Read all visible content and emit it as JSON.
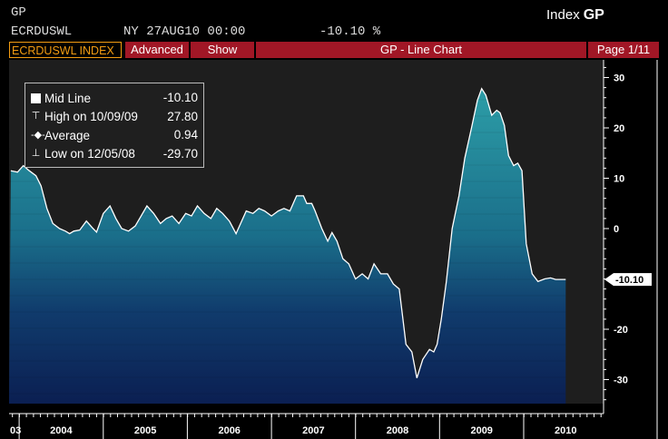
{
  "header": {
    "command": "GP",
    "ticker": "ECRDUSWL",
    "date_line": "NY 27AUG10 00:00",
    "value": "-10.10 %",
    "index_label": "Index",
    "index_func": "GP"
  },
  "toolbar": {
    "ticker_tab": "ECRDUSWL INDEX",
    "advanced": "Advanced",
    "show": "Show",
    "title": "GP - Line Chart",
    "page": "Page 1/11"
  },
  "legend": {
    "mid": {
      "label": "Mid Line",
      "value": "-10.10"
    },
    "high": {
      "label": "High on 10/09/09",
      "value": "27.80"
    },
    "average": {
      "label": "Average",
      "value": "0.94"
    },
    "low": {
      "label": "Low on 12/05/08",
      "value": "-29.70"
    }
  },
  "colors": {
    "panel": "#1e1e1e",
    "fill_top": "#2b9aa5",
    "fill_bottom": "#0b1f52",
    "accent": "#a11726",
    "ticker_tab": "#f39c12"
  },
  "chart_data": {
    "type": "area",
    "ylim": [
      -35,
      32
    ],
    "yticks": [
      30,
      20,
      10,
      0,
      -10,
      -20,
      -30
    ],
    "current_value": "-10.10",
    "x_labels": [
      "03",
      "2004",
      "2005",
      "2006",
      "2007",
      "2008",
      "2009",
      "2010"
    ],
    "x_label_dates": [
      2003.9,
      2004.0,
      2005.0,
      2006.0,
      2007.0,
      2008.0,
      2009.0,
      2010.0
    ],
    "xlim": [
      2003.88,
      2010.95
    ],
    "x": [
      2003.9,
      2003.98,
      2004.05,
      2004.12,
      2004.2,
      2004.26,
      2004.33,
      2004.4,
      2004.48,
      2004.55,
      2004.6,
      2004.65,
      2004.72,
      2004.8,
      2004.88,
      2004.92,
      2005.0,
      2005.08,
      2005.15,
      2005.22,
      2005.3,
      2005.38,
      2005.45,
      2005.52,
      2005.6,
      2005.68,
      2005.75,
      2005.82,
      2005.9,
      2005.98,
      2006.05,
      2006.12,
      2006.2,
      2006.28,
      2006.35,
      2006.42,
      2006.5,
      2006.58,
      2006.62,
      2006.7,
      2006.78,
      2006.85,
      2006.92,
      2007.0,
      2007.08,
      2007.15,
      2007.22,
      2007.3,
      2007.38,
      2007.42,
      2007.48,
      2007.52,
      2007.6,
      2007.67,
      2007.72,
      2007.78,
      2007.85,
      2007.92,
      2008.0,
      2008.08,
      2008.15,
      2008.22,
      2008.3,
      2008.38,
      2008.45,
      2008.52,
      2008.6,
      2008.67,
      2008.73,
      2008.8,
      2008.88,
      2008.93,
      2008.97,
      2009.02,
      2009.08,
      2009.15,
      2009.23,
      2009.3,
      2009.38,
      2009.45,
      2009.5,
      2009.55,
      2009.62,
      2009.68,
      2009.72,
      2009.77,
      2009.82,
      2009.88,
      2009.93,
      2009.98,
      2010.03,
      2010.1,
      2010.17,
      2010.25,
      2010.32,
      2010.38,
      2010.45,
      2010.5
    ],
    "y": [
      11.5,
      11.2,
      12.5,
      11.5,
      10.5,
      8.5,
      4,
      1,
      0,
      -0.5,
      -1,
      -0.5,
      -0.3,
      1.5,
      0,
      -0.7,
      3,
      4.5,
      2,
      0,
      -0.5,
      0.5,
      2.5,
      4.5,
      3,
      1,
      2,
      2.5,
      1,
      3,
      2.5,
      4.5,
      3,
      2,
      4,
      3,
      1.5,
      -1,
      0.5,
      3.5,
      3,
      4,
      3.5,
      2.5,
      3.5,
      4,
      3.5,
      6.5,
      6.5,
      5,
      5,
      3.5,
      0,
      -2.5,
      -0.8,
      -2.5,
      -6,
      -7,
      -10,
      -9,
      -10,
      -7,
      -9,
      -9,
      -11,
      -12,
      -23,
      -24.5,
      -29.7,
      -26,
      -24,
      -24.5,
      -23,
      -18,
      -10.5,
      0,
      6.5,
      14,
      20,
      25.5,
      27.8,
      26.5,
      22.5,
      23.5,
      23,
      20.5,
      14.5,
      12.5,
      13,
      11.5,
      -3,
      -9,
      -10.5,
      -10,
      -9.8,
      -10.1,
      -10.1,
      -10.1
    ]
  }
}
